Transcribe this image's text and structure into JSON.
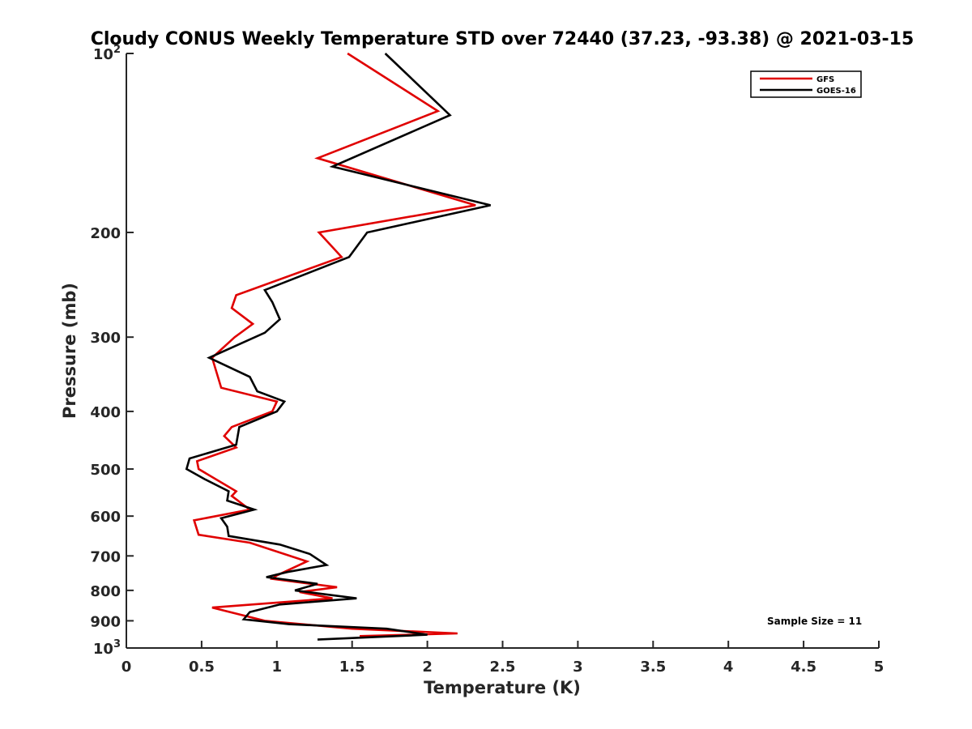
{
  "chart_data": {
    "type": "line",
    "title": "Cloudy CONUS Weekly Temperature STD over 72440 (37.23, -93.38) @ 2021-03-15",
    "xlabel": "Temperature (K)",
    "ylabel": "Pressure (mb)",
    "xlim": [
      0,
      5
    ],
    "ylim": [
      100,
      1000
    ],
    "y_scale": "log",
    "y_reversed": true,
    "x_ticks": [
      "0",
      "0.5",
      "1",
      "1.5",
      "2",
      "2.5",
      "3",
      "3.5",
      "4",
      "4.5",
      "5"
    ],
    "y_ticks": [
      {
        "value": 100,
        "base": "10",
        "exp": "2"
      },
      {
        "value": 200,
        "label": "200"
      },
      {
        "value": 300,
        "label": "300"
      },
      {
        "value": 400,
        "label": "400"
      },
      {
        "value": 500,
        "label": "500"
      },
      {
        "value": 600,
        "label": "600"
      },
      {
        "value": 700,
        "label": "700"
      },
      {
        "value": 800,
        "label": "800"
      },
      {
        "value": 900,
        "label": "900"
      },
      {
        "value": 1000,
        "base": "10",
        "exp": "3"
      }
    ],
    "grid": false,
    "legend_position": "top-right",
    "annotation": "Sample Size = 11",
    "series": [
      {
        "name": "GFS",
        "color": "#e00000",
        "points": [
          [
            1.47,
            100
          ],
          [
            2.07,
            125
          ],
          [
            1.27,
            150
          ],
          [
            2.32,
            180
          ],
          [
            1.28,
            200
          ],
          [
            1.43,
            220
          ],
          [
            0.73,
            255
          ],
          [
            0.7,
            268
          ],
          [
            0.84,
            285
          ],
          [
            0.72,
            300
          ],
          [
            0.57,
            325
          ],
          [
            0.63,
            365
          ],
          [
            1.0,
            385
          ],
          [
            0.97,
            400
          ],
          [
            0.7,
            425
          ],
          [
            0.65,
            440
          ],
          [
            0.73,
            460
          ],
          [
            0.47,
            485
          ],
          [
            0.48,
            500
          ],
          [
            0.73,
            545
          ],
          [
            0.7,
            555
          ],
          [
            0.82,
            585
          ],
          [
            0.45,
            610
          ],
          [
            0.48,
            645
          ],
          [
            0.82,
            665
          ],
          [
            1.2,
            715
          ],
          [
            1.0,
            755
          ],
          [
            0.97,
            765
          ],
          [
            1.4,
            790
          ],
          [
            1.15,
            805
          ],
          [
            1.37,
            825
          ],
          [
            0.57,
            855
          ],
          [
            0.92,
            900
          ],
          [
            1.5,
            928
          ],
          [
            2.2,
            945
          ],
          [
            1.55,
            955
          ]
        ]
      },
      {
        "name": "GOES-16",
        "color": "#000000",
        "points": [
          [
            1.72,
            100
          ],
          [
            2.15,
            127
          ],
          [
            1.37,
            155
          ],
          [
            2.42,
            180
          ],
          [
            1.6,
            200
          ],
          [
            1.48,
            220
          ],
          [
            0.92,
            250
          ],
          [
            0.97,
            262
          ],
          [
            1.02,
            280
          ],
          [
            0.92,
            295
          ],
          [
            0.55,
            325
          ],
          [
            0.82,
            350
          ],
          [
            0.87,
            370
          ],
          [
            1.05,
            385
          ],
          [
            1.0,
            400
          ],
          [
            0.75,
            425
          ],
          [
            0.73,
            455
          ],
          [
            0.42,
            480
          ],
          [
            0.4,
            500
          ],
          [
            0.52,
            520
          ],
          [
            0.68,
            545
          ],
          [
            0.67,
            565
          ],
          [
            0.85,
            585
          ],
          [
            0.63,
            605
          ],
          [
            0.67,
            625
          ],
          [
            0.68,
            648
          ],
          [
            1.02,
            670
          ],
          [
            1.22,
            695
          ],
          [
            1.33,
            725
          ],
          [
            1.07,
            745
          ],
          [
            0.93,
            760
          ],
          [
            1.27,
            780
          ],
          [
            1.12,
            800
          ],
          [
            1.53,
            825
          ],
          [
            1.02,
            845
          ],
          [
            0.82,
            870
          ],
          [
            0.78,
            895
          ],
          [
            1.08,
            912
          ],
          [
            1.73,
            928
          ],
          [
            2.0,
            950
          ],
          [
            1.27,
            968
          ]
        ]
      }
    ]
  }
}
